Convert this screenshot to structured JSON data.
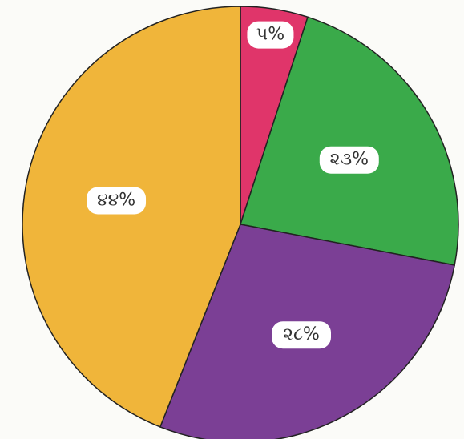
{
  "chart_data": {
    "type": "pie",
    "categories": [
      null,
      null,
      null,
      null
    ],
    "values": [
      5,
      23,
      28,
      44
    ],
    "value_labels": [
      "૫%",
      "૨૩%",
      "૨૮%",
      "૪૪%"
    ],
    "colors": [
      "#e0356a",
      "#3aaa4a",
      "#7b3f95",
      "#f0b53a"
    ]
  }
}
